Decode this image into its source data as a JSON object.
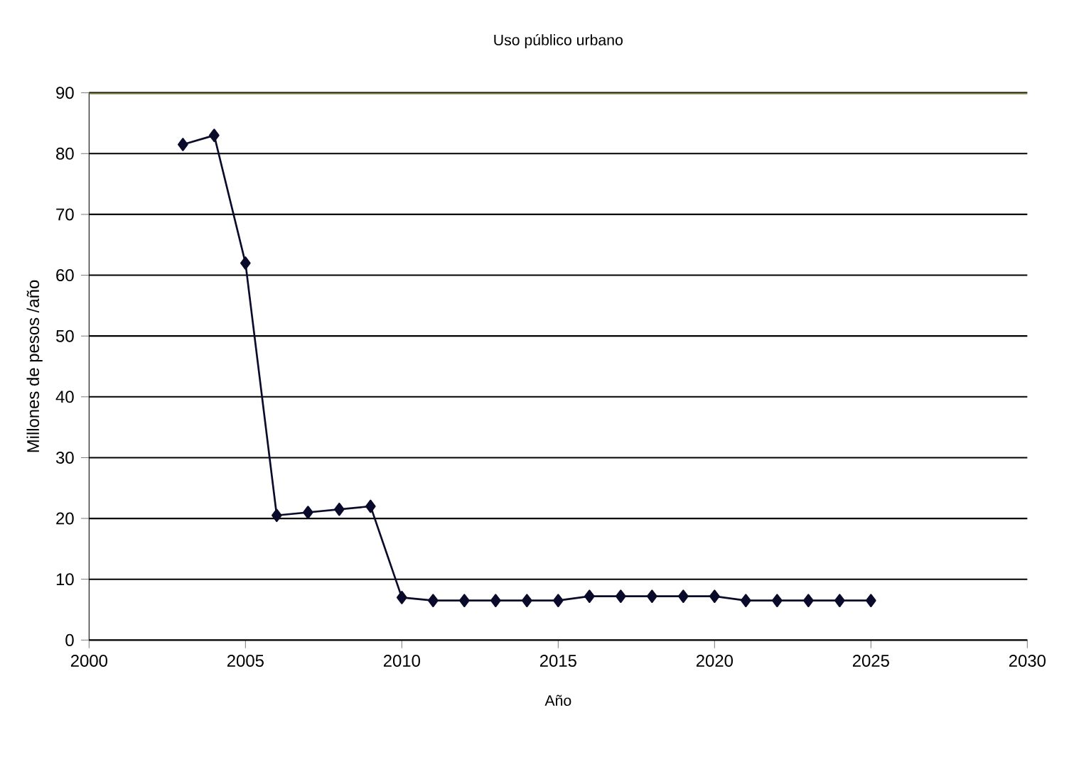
{
  "chart_data": {
    "type": "line",
    "title": "Uso público urbano",
    "xlabel": "Año",
    "ylabel": "Millones de pesos /año",
    "x": [
      2003,
      2004,
      2005,
      2006,
      2007,
      2008,
      2009,
      2010,
      2011,
      2012,
      2013,
      2014,
      2015,
      2016,
      2017,
      2018,
      2019,
      2020,
      2021,
      2022,
      2023,
      2024,
      2025
    ],
    "series": [
      {
        "color": "#0a0a2a",
        "values": [
          81.5,
          83,
          62,
          20.5,
          21,
          21.5,
          22,
          7,
          6.5,
          6.5,
          6.5,
          6.5,
          6.5,
          7.2,
          7.2,
          7.2,
          7.2,
          7.2,
          6.5,
          6.5,
          6.5,
          6.5,
          6.5
        ]
      }
    ],
    "xlim": [
      2000,
      2030
    ],
    "xticks": [
      2000,
      2005,
      2010,
      2015,
      2020,
      2025,
      2030
    ],
    "ylim": [
      0,
      90
    ],
    "yticks": [
      0,
      10,
      20,
      30,
      40,
      50,
      60,
      70,
      80,
      90
    ],
    "grid": "y",
    "marker": "diamond",
    "line_style": "solid"
  }
}
